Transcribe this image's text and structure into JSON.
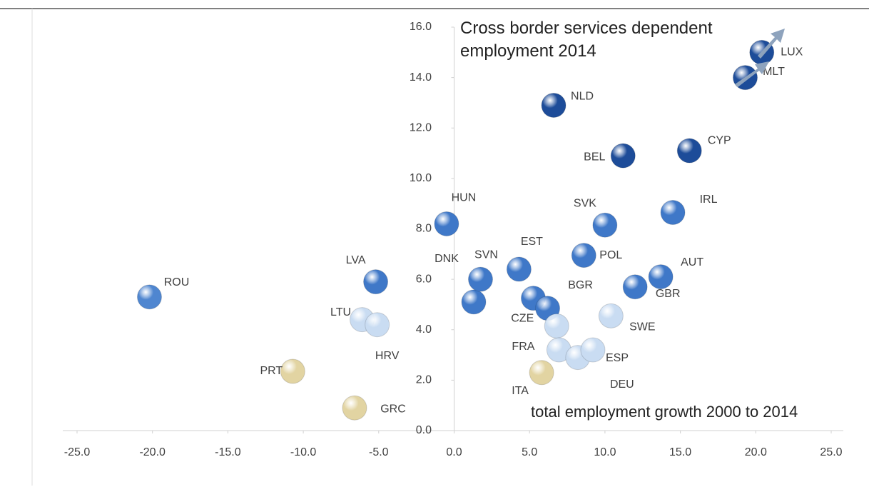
{
  "chart_data": {
    "type": "scatter",
    "title": "Cross border services dependent employment 2014",
    "x_label": "total employment growth 2000 to 2014",
    "labels": [
      "ROU",
      "LVA",
      "LTU",
      "HRV",
      "PRT",
      "GRC",
      "HUN",
      "DNK",
      "SVN",
      "EST",
      null,
      "BGR",
      "CZE",
      "FRA",
      "DEU",
      "ESP",
      "ITA",
      "SWE",
      "POL",
      "SVK",
      "GBR",
      "AUT",
      "IRL",
      "BEL",
      "CYP",
      "NLD",
      "MLT",
      "LUX"
    ],
    "x": [
      -20.2,
      -5.2,
      -6.1,
      -5.1,
      -10.7,
      -6.6,
      -0.5,
      1.3,
      1.75,
      4.3,
      5.25,
      6.2,
      6.8,
      6.95,
      8.2,
      9.2,
      5.8,
      10.4,
      8.6,
      10.0,
      12.0,
      13.7,
      14.5,
      11.2,
      15.6,
      6.6,
      19.3,
      20.4
    ],
    "values": [
      5.3,
      5.9,
      4.4,
      4.2,
      2.35,
      0.9,
      8.2,
      5.1,
      6.0,
      6.4,
      5.25,
      4.85,
      4.15,
      3.2,
      2.9,
      3.2,
      2.3,
      4.55,
      6.95,
      8.15,
      5.7,
      6.1,
      8.65,
      10.9,
      11.1,
      12.9,
      14.0,
      15.0
    ],
    "colors": [
      "#4f86d0",
      "#3f78c8",
      "#c9dcf2",
      "#c9dcf2",
      "#e2d4a2",
      "#e2d4a2",
      "#3f78c8",
      "#3f78c8",
      "#3f78c8",
      "#3f78c8",
      "#3f78c8",
      "#3f78c8",
      "#c9dcf2",
      "#c9dcf2",
      "#c9dcf2",
      "#c9dcf2",
      "#e2d4a2",
      "#c9dcf2",
      "#3f78c8",
      "#3f78c8",
      "#3f78c8",
      "#3f78c8",
      "#3f78c8",
      "#1d4c99",
      "#1d4c99",
      "#1d4c99",
      "#1d4c99",
      "#1d4c99"
    ],
    "xlim": [
      -25,
      25
    ],
    "ylim": [
      0,
      16
    ],
    "xticks": [
      {
        "value": -25,
        "label": "-25.0"
      },
      {
        "value": -20,
        "label": "-20.0"
      },
      {
        "value": -15,
        "label": "-15.0"
      },
      {
        "value": -10,
        "label": "-10.0"
      },
      {
        "value": -5,
        "label": "-5.0"
      },
      {
        "value": 0,
        "label": "0.0"
      },
      {
        "value": 5,
        "label": "5.0"
      },
      {
        "value": 10,
        "label": "10.0"
      },
      {
        "value": 15,
        "label": "15.0"
      },
      {
        "value": 20,
        "label": "20.0"
      },
      {
        "value": 25,
        "label": "25.0"
      }
    ],
    "yticks": [
      {
        "value": 0,
        "label": "0.0"
      },
      {
        "value": 2,
        "label": "2.0"
      },
      {
        "value": 4,
        "label": "4.0"
      },
      {
        "value": 6,
        "label": "6.0"
      },
      {
        "value": 8,
        "label": "8.0"
      },
      {
        "value": 10,
        "label": "10.0"
      },
      {
        "value": 12,
        "label": "12.0"
      },
      {
        "value": 14,
        "label": "14.0"
      },
      {
        "value": 16,
        "label": "16.0"
      }
    ]
  }
}
